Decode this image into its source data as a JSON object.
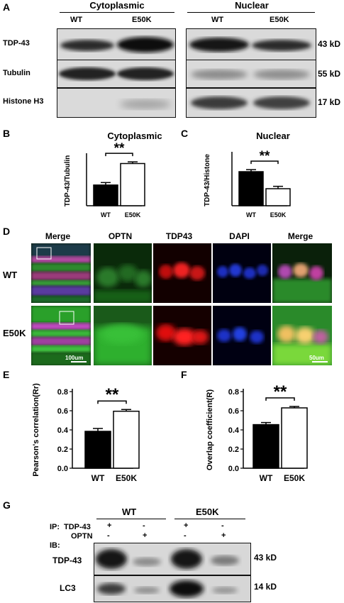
{
  "panel_A": {
    "letter": "A",
    "groups": [
      "Cytoplasmic",
      "Nuclear"
    ],
    "lanes": [
      "WT",
      "E50K",
      "WT",
      "E50K"
    ],
    "rows": [
      {
        "label": "TDP-43",
        "size": "43 kD"
      },
      {
        "label": "Tubulin",
        "size": "55 kD"
      },
      {
        "label": "Histone H3",
        "size": "17 kD"
      }
    ]
  },
  "panel_B": {
    "letter": "B",
    "title": "Cytoplasmic",
    "ylabel": "TDP-43/Tubulin",
    "categories": [
      "WT",
      "E50K"
    ],
    "values": [
      1.25,
      2.55
    ],
    "errors": [
      0.15,
      0.1
    ],
    "ylim": [
      0,
      3
    ],
    "significance": "**"
  },
  "panel_C": {
    "letter": "C",
    "title": "Nuclear",
    "ylabel": "TDP-43/Histone",
    "categories": [
      "WT",
      "E50K"
    ],
    "values": [
      1.0,
      0.5
    ],
    "errors": [
      0.06,
      0.07
    ],
    "ylim": [
      0,
      1.5
    ],
    "significance": "**"
  },
  "panel_D": {
    "letter": "D",
    "columns": [
      "Merge",
      "OPTN",
      "TDP43",
      "DAPI",
      "Merge"
    ],
    "column_colors": [
      "#000000",
      "#1fa83a",
      "#e01414",
      "#1d3fd6",
      "#000000"
    ],
    "rows": [
      "WT",
      "E50K"
    ],
    "scalebars": [
      "100um",
      "50um"
    ]
  },
  "panel_E": {
    "letter": "E",
    "ylabel": "Pearson's correlation(Rr)",
    "categories": [
      "WT",
      "E50K"
    ],
    "values": [
      0.385,
      0.595
    ],
    "errors": [
      0.03,
      0.018
    ],
    "yticks": [
      "0.0",
      "0.2",
      "0.4",
      "0.6",
      "0.8"
    ],
    "ylim": [
      0,
      0.8
    ],
    "significance": "**"
  },
  "panel_F": {
    "letter": "F",
    "ylabel": "Overlap coefficient(R)",
    "categories": [
      "WT",
      "E50K"
    ],
    "values": [
      0.455,
      0.63
    ],
    "errors": [
      0.022,
      0.015
    ],
    "yticks": [
      "0.0",
      "0.2",
      "0.4",
      "0.6",
      "0.8"
    ],
    "ylim": [
      0,
      0.8
    ],
    "significance": "**"
  },
  "panel_G": {
    "letter": "G",
    "groups": [
      "WT",
      "E50K"
    ],
    "ip_label": "IP:",
    "ip_rows": [
      {
        "label": "TDP-43",
        "signs": [
          "+",
          "-",
          "+",
          "-"
        ]
      },
      {
        "label": "OPTN",
        "signs": [
          "-",
          "+",
          "-",
          "+"
        ]
      }
    ],
    "ib_label": "IB:",
    "rows": [
      {
        "label": "TDP-43",
        "size": "43 kD"
      },
      {
        "label": "LC3",
        "size": "14 kD"
      }
    ]
  },
  "chart_data": [
    {
      "type": "bar",
      "title": "Cytoplasmic",
      "ylabel": "TDP-43/Tubulin",
      "categories": [
        "WT",
        "E50K"
      ],
      "values": [
        1.25,
        2.55
      ],
      "ylim": [
        0,
        3
      ]
    },
    {
      "type": "bar",
      "title": "Nuclear",
      "ylabel": "TDP-43/Histone",
      "categories": [
        "WT",
        "E50K"
      ],
      "values": [
        1.0,
        0.5
      ],
      "ylim": [
        0,
        1.5
      ]
    },
    {
      "type": "bar",
      "ylabel": "Pearson's correlation(Rr)",
      "categories": [
        "WT",
        "E50K"
      ],
      "values": [
        0.385,
        0.595
      ],
      "ylim": [
        0,
        0.8
      ]
    },
    {
      "type": "bar",
      "ylabel": "Overlap coefficient(R)",
      "categories": [
        "WT",
        "E50K"
      ],
      "values": [
        0.455,
        0.63
      ],
      "ylim": [
        0,
        0.8
      ]
    }
  ]
}
